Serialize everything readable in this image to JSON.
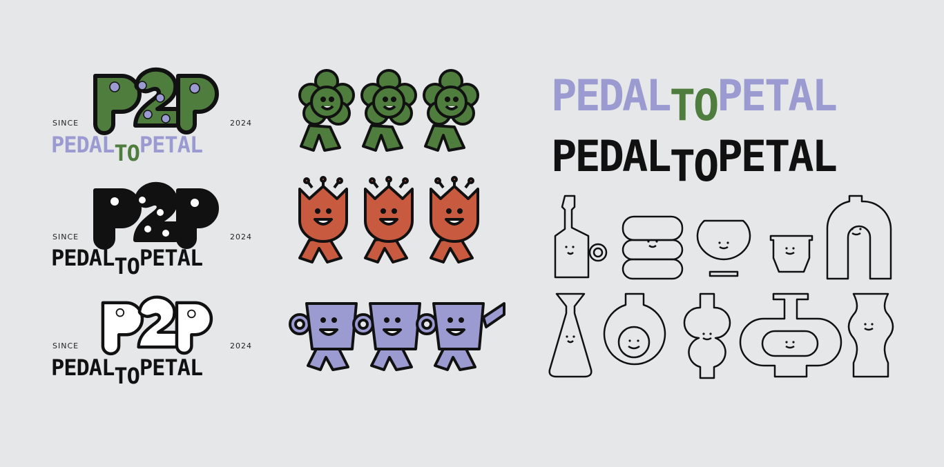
{
  "brand": {
    "monogram": "P2P",
    "since_label": "SINCE",
    "year": "2024",
    "word_left": "PEDAL",
    "word_mid": "TO",
    "word_right": "PETAL"
  },
  "colors": {
    "background": "#e6e7e9",
    "green": "#4e7d3e",
    "lavender": "#9b9bd1",
    "terracotta": "#c85a3f",
    "black": "#111111",
    "outline": "#222222"
  },
  "icons": {
    "flower_walkers": "walking-flower-icon",
    "tulip_walkers": "walking-tulip-icon",
    "teapot_walkers": "walking-teapot-icon",
    "vases": "vase-icon"
  }
}
